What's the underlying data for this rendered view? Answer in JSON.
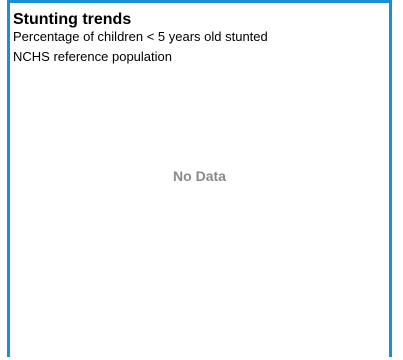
{
  "chart_data": {
    "type": "line",
    "title": "Stunting trends",
    "subtitle": "Percentage of children < 5 years old stunted",
    "subtitle2": "NCHS reference population",
    "message": "No Data",
    "series": []
  },
  "colors": {
    "border": "#1a8fd8",
    "no_data_text": "#8a8a8a"
  }
}
